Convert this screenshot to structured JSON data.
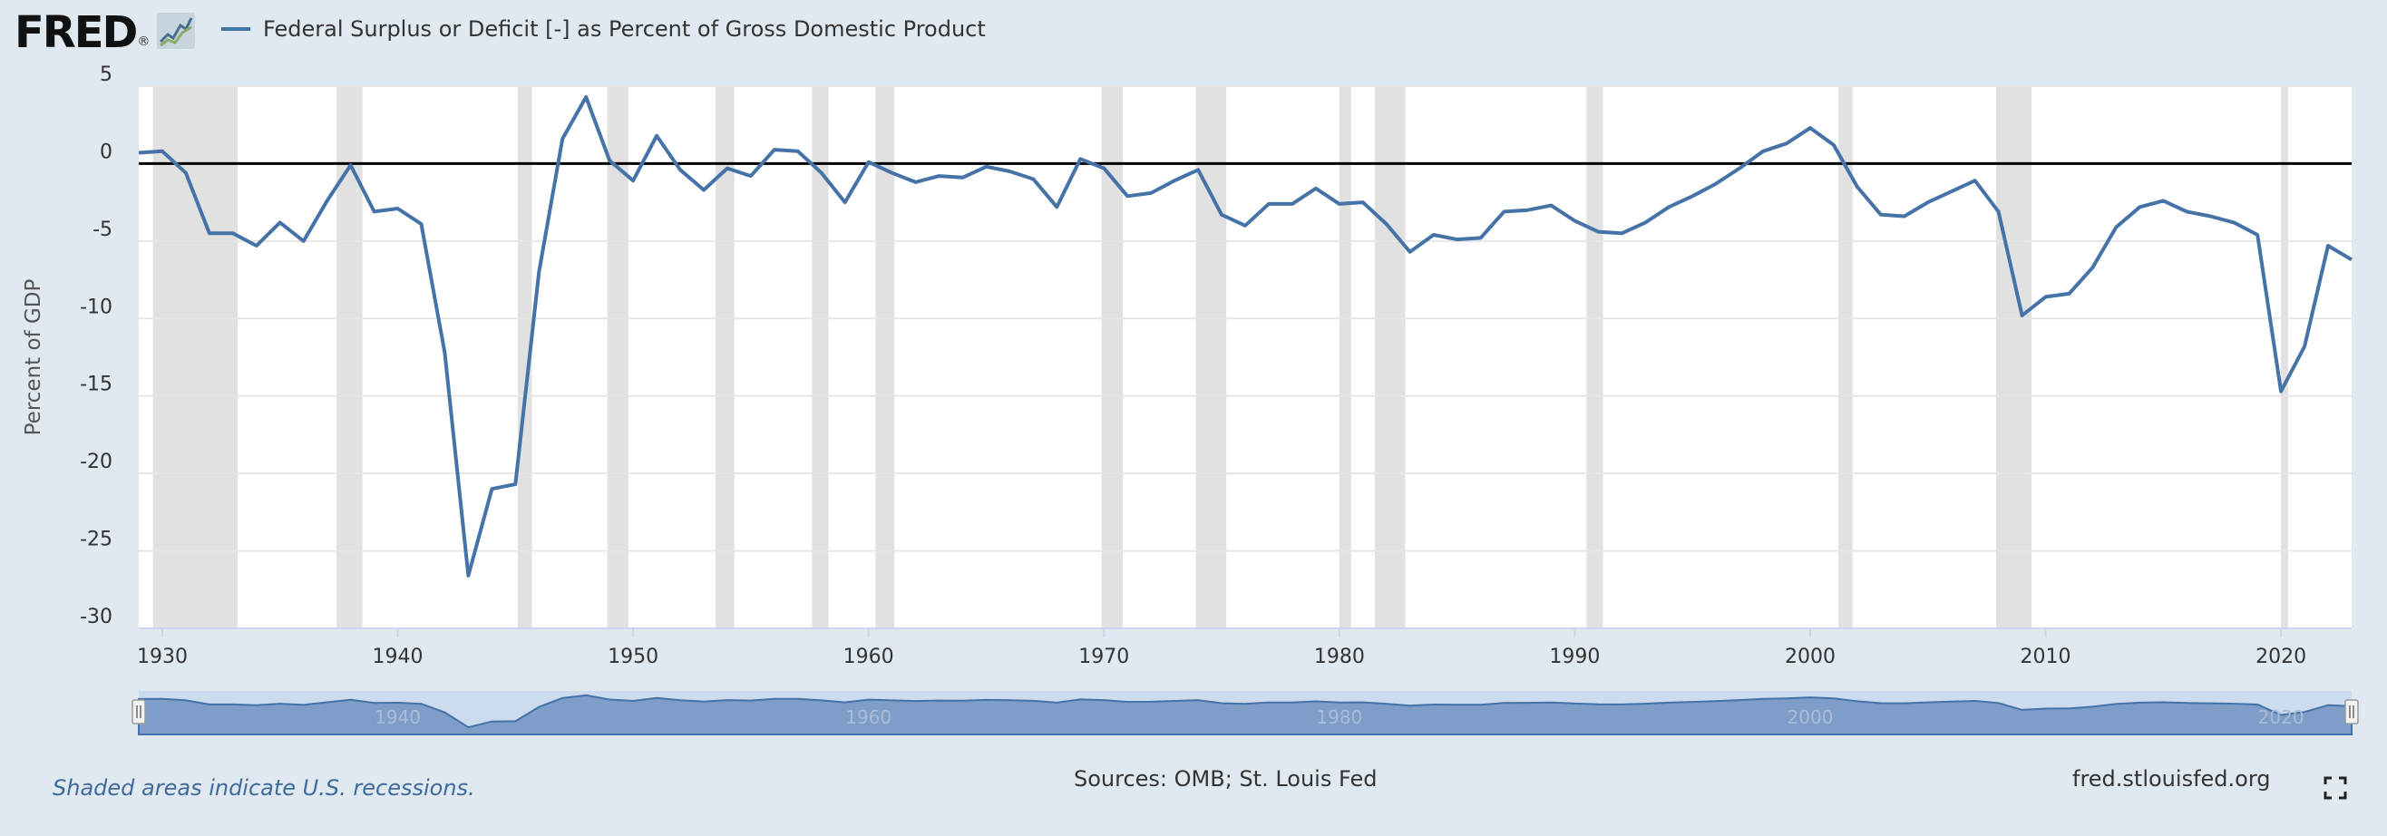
{
  "logo": {
    "text": "FRED",
    "mark": "®",
    "icon": "chart-line-icon"
  },
  "chart_data": {
    "type": "line",
    "title": "",
    "ylabel": "Percent of GDP",
    "xlabel": "",
    "xlim": [
      1929,
      2023
    ],
    "ylim": [
      -30,
      5
    ],
    "yticks": [
      5,
      0,
      -5,
      -10,
      -15,
      -20,
      -25,
      -30
    ],
    "xticks": [
      1930,
      1940,
      1950,
      1960,
      1970,
      1980,
      1990,
      2000,
      2010,
      2020
    ],
    "grid": "horizontal",
    "series": [
      {
        "name": "Federal Surplus or Deficit [-] as Percent of Gross Domestic Product",
        "color": "#4572a7",
        "x": [
          1929,
          1930,
          1931,
          1932,
          1933,
          1934,
          1935,
          1936,
          1937,
          1938,
          1939,
          1940,
          1941,
          1942,
          1943,
          1944,
          1945,
          1946,
          1947,
          1948,
          1949,
          1950,
          1951,
          1952,
          1953,
          1954,
          1955,
          1956,
          1957,
          1958,
          1959,
          1960,
          1961,
          1962,
          1963,
          1964,
          1965,
          1966,
          1967,
          1968,
          1969,
          1970,
          1971,
          1972,
          1973,
          1974,
          1975,
          1976,
          1977,
          1978,
          1979,
          1980,
          1981,
          1982,
          1983,
          1984,
          1985,
          1986,
          1987,
          1988,
          1989,
          1990,
          1991,
          1992,
          1993,
          1994,
          1995,
          1996,
          1997,
          1998,
          1999,
          2000,
          2001,
          2002,
          2003,
          2004,
          2005,
          2006,
          2007,
          2008,
          2009,
          2010,
          2011,
          2012,
          2013,
          2014,
          2015,
          2016,
          2017,
          2018,
          2019,
          2020,
          2021,
          2022,
          2023
        ],
        "values": [
          0.7,
          0.8,
          -0.6,
          -4.5,
          -4.5,
          -5.3,
          -3.8,
          -5.0,
          -2.4,
          -0.1,
          -3.1,
          -2.9,
          -3.9,
          -12.2,
          -26.6,
          -21.0,
          -20.7,
          -7.0,
          1.6,
          4.3,
          0.2,
          -1.1,
          1.8,
          -0.4,
          -1.7,
          -0.3,
          -0.8,
          0.9,
          0.8,
          -0.6,
          -2.5,
          0.1,
          -0.6,
          -1.2,
          -0.8,
          -0.9,
          -0.2,
          -0.5,
          -1.0,
          -2.8,
          0.3,
          -0.3,
          -2.1,
          -1.9,
          -1.1,
          -0.4,
          -3.3,
          -4.0,
          -2.6,
          -2.6,
          -1.6,
          -2.6,
          -2.5,
          -3.9,
          -5.7,
          -4.6,
          -4.9,
          -4.8,
          -3.1,
          -3.0,
          -2.7,
          -3.7,
          -4.4,
          -4.5,
          -3.8,
          -2.8,
          -2.1,
          -1.3,
          -0.3,
          0.8,
          1.3,
          2.3,
          1.2,
          -1.5,
          -3.3,
          -3.4,
          -2.5,
          -1.8,
          -1.1,
          -3.1,
          -9.8,
          -8.6,
          -8.4,
          -6.7,
          -4.1,
          -2.8,
          -2.4,
          -3.1,
          -3.4,
          -3.8,
          -4.6,
          -14.7,
          -11.8,
          -5.3,
          -6.2
        ]
      }
    ],
    "recessions": [
      [
        1929.6,
        1933.2
      ],
      [
        1937.4,
        1938.5
      ],
      [
        1945.1,
        1945.7
      ],
      [
        1948.9,
        1949.8
      ],
      [
        1953.5,
        1954.3
      ],
      [
        1957.6,
        1958.3
      ],
      [
        1960.3,
        1961.1
      ],
      [
        1969.9,
        1970.8
      ],
      [
        1973.9,
        1975.2
      ],
      [
        1980.0,
        1980.5
      ],
      [
        1981.5,
        1982.8
      ],
      [
        1990.5,
        1991.2
      ],
      [
        2001.2,
        2001.8
      ],
      [
        2007.9,
        2009.4
      ],
      [
        2020.0,
        2020.3
      ]
    ],
    "navigator_labels": [
      "1940",
      "1960",
      "1980",
      "2000",
      "2020"
    ],
    "navigator_label_years": [
      1940,
      1960,
      1980,
      2000,
      2020
    ]
  },
  "footer": {
    "recession_note": "Shaded areas indicate U.S. recessions.",
    "sources": "Sources: OMB; St. Louis Fed",
    "site": "fred.stlouisfed.org"
  },
  "colors": {
    "background": "#e1e9f0",
    "plot": "#ffffff",
    "line": "#4572a7",
    "recession": "#e1e1e1",
    "navigator": "#7f9dc9"
  }
}
